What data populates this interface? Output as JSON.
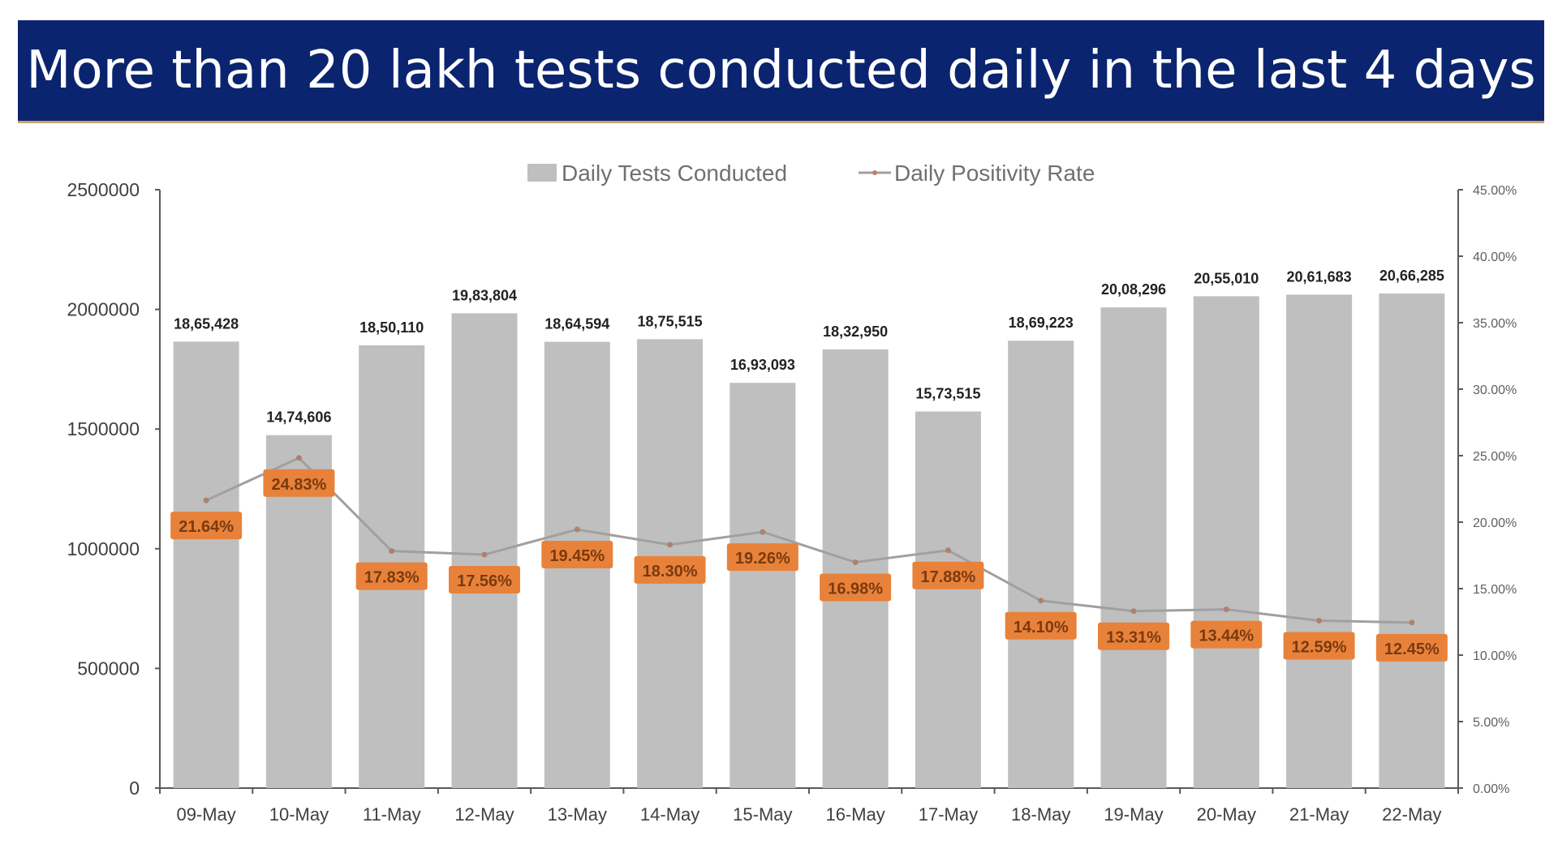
{
  "title": "More than 20 lakh tests conducted daily in the last 4 days",
  "chart_data": {
    "type": "bar+line",
    "categories": [
      "09-May",
      "10-May",
      "11-May",
      "12-May",
      "13-May",
      "14-May",
      "15-May",
      "16-May",
      "17-May",
      "18-May",
      "19-May",
      "20-May",
      "21-May",
      "22-May"
    ],
    "series": [
      {
        "name": "Daily Tests Conducted",
        "type": "bar",
        "axis": "left",
        "color": "#bfbfbf",
        "values": [
          1865428,
          1474606,
          1850110,
          1983804,
          1864594,
          1875515,
          1693093,
          1832950,
          1573515,
          1869223,
          2008296,
          2055010,
          2061683,
          2066285
        ],
        "labels": [
          "18,65,428",
          "14,74,606",
          "18,50,110",
          "19,83,804",
          "18,64,594",
          "18,75,515",
          "16,93,093",
          "18,32,950",
          "15,73,515",
          "18,69,223",
          "20,08,296",
          "20,55,010",
          "20,61,683",
          "20,66,285"
        ]
      },
      {
        "name": "Daily Positivity Rate",
        "type": "line",
        "axis": "right",
        "color": "#a0a0a0",
        "label_color": "#e8823a",
        "values": [
          21.64,
          24.83,
          17.83,
          17.56,
          19.45,
          18.3,
          19.26,
          16.98,
          17.88,
          14.1,
          13.31,
          13.44,
          12.59,
          12.45
        ],
        "labels": [
          "21.64%",
          "24.83%",
          "17.83%",
          "17.56%",
          "19.45%",
          "18.30%",
          "19.26%",
          "16.98%",
          "17.88%",
          "14.10%",
          "13.31%",
          "13.44%",
          "12.59%",
          "12.45%"
        ]
      }
    ],
    "y_left": {
      "range": [
        0,
        2500000
      ],
      "ticks": [
        "0",
        "500000",
        "1000000",
        "1500000",
        "2000000",
        "2500000"
      ]
    },
    "y_right": {
      "range": [
        0,
        45
      ],
      "ticks": [
        "0.00%",
        "5.00%",
        "10.00%",
        "15.00%",
        "20.00%",
        "25.00%",
        "30.00%",
        "35.00%",
        "40.00%",
        "45.00%"
      ]
    },
    "legend": "top",
    "grid": false
  }
}
